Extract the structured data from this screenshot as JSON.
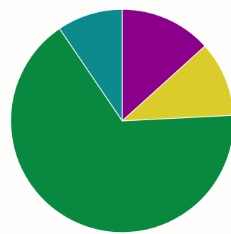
{
  "chart_data": {
    "type": "pie",
    "title": "",
    "start_angle_deg": 0,
    "direction": "clockwise",
    "slices": [
      {
        "value": 13.3,
        "color": "#8b008b"
      },
      {
        "value": 10.9,
        "color": "#dacc2a"
      },
      {
        "value": 66.3,
        "color": "#08893f"
      },
      {
        "value": 9.5,
        "color": "#0c8a8c"
      }
    ]
  }
}
